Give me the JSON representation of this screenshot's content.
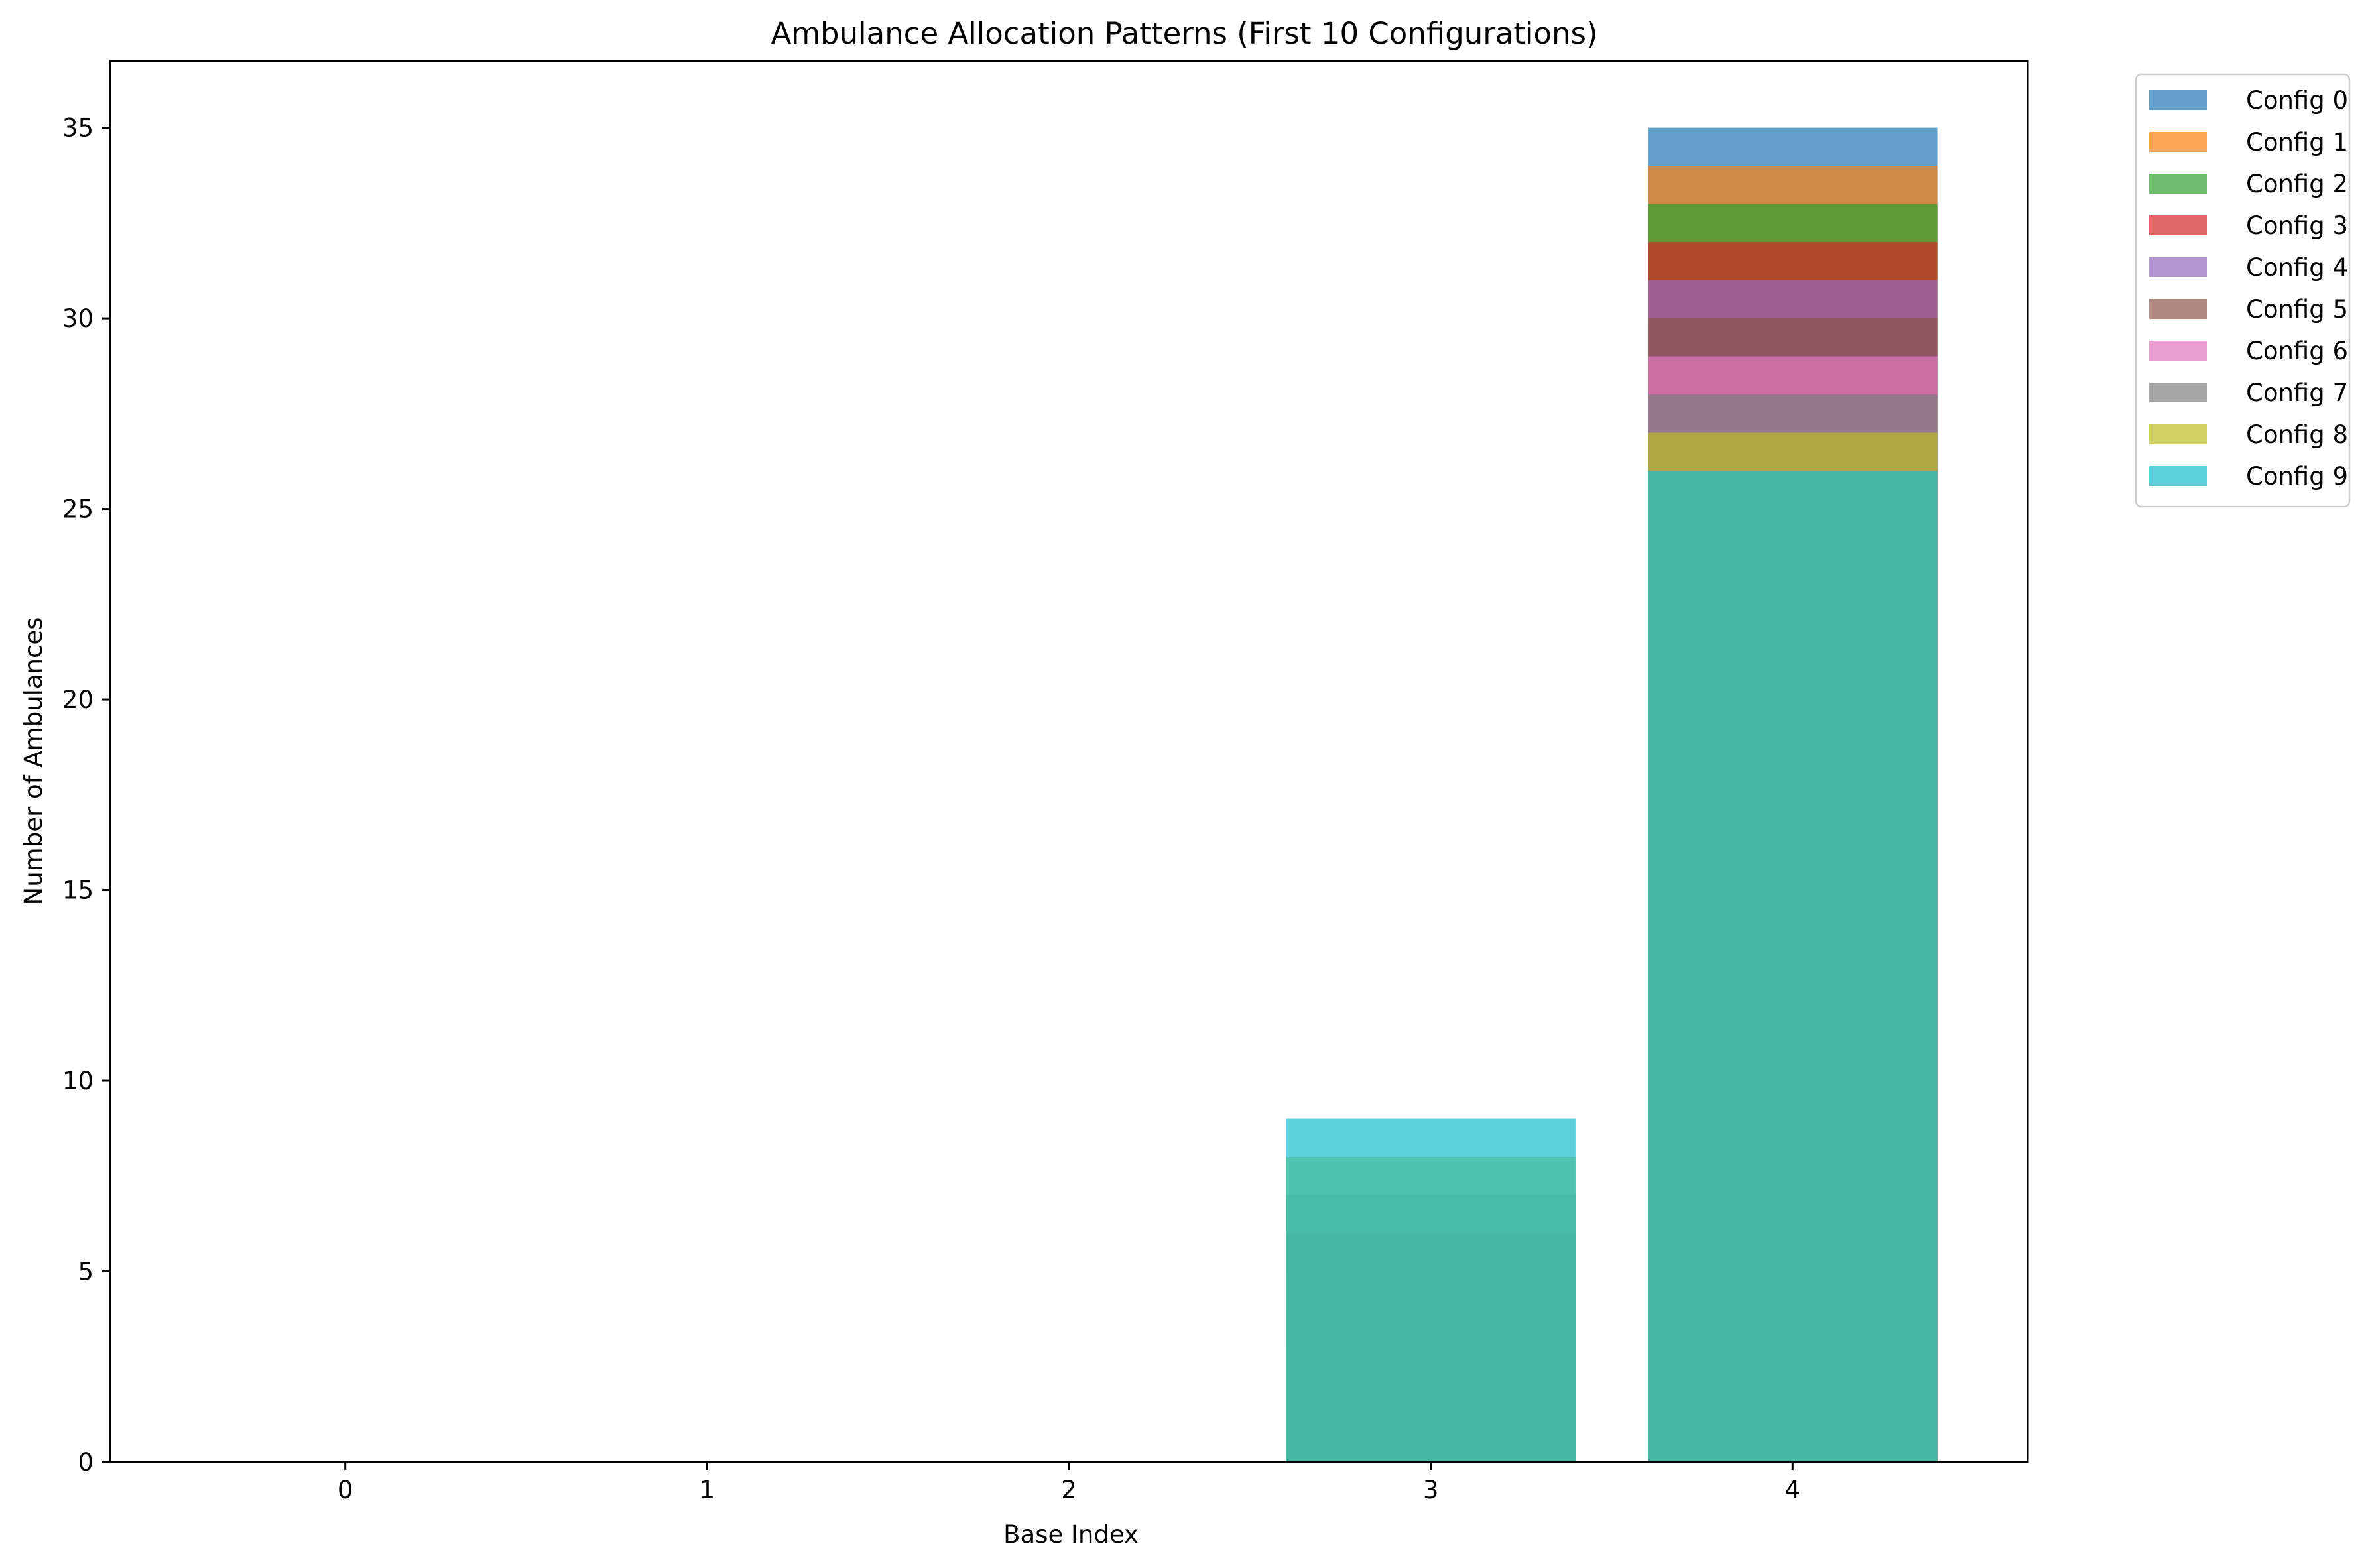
{
  "chart_data": {
    "type": "bar",
    "title": "Ambulance Allocation Patterns (First 10 Configurations)",
    "xlabel": "Base Index",
    "ylabel": "Number of Ambulances",
    "categories": [
      "0",
      "1",
      "2",
      "3",
      "4"
    ],
    "xlim": [
      -0.65,
      4.65
    ],
    "ylim": [
      0,
      36.75
    ],
    "yticks": [
      0,
      5,
      10,
      15,
      20,
      25,
      30,
      35
    ],
    "bar_alpha": 0.7,
    "bar_width": 0.8,
    "legend_position": "outside-upper-right",
    "grid": false,
    "series": [
      {
        "name": "Config 0",
        "color": "#1f77b4",
        "values": [
          0,
          0,
          0,
          0,
          35
        ]
      },
      {
        "name": "Config 1",
        "color": "#ff7f0e",
        "values": [
          0,
          0,
          0,
          1,
          34
        ]
      },
      {
        "name": "Config 2",
        "color": "#2ca02c",
        "values": [
          0,
          0,
          0,
          2,
          33
        ]
      },
      {
        "name": "Config 3",
        "color": "#d62728",
        "values": [
          0,
          0,
          0,
          3,
          32
        ]
      },
      {
        "name": "Config 4",
        "color": "#9467bd",
        "values": [
          0,
          0,
          0,
          4,
          31
        ]
      },
      {
        "name": "Config 5",
        "color": "#8c564b",
        "values": [
          0,
          0,
          0,
          5,
          30
        ]
      },
      {
        "name": "Config 6",
        "color": "#e377c2",
        "values": [
          0,
          0,
          0,
          6,
          29
        ]
      },
      {
        "name": "Config 7",
        "color": "#7f7f7f",
        "values": [
          0,
          0,
          0,
          7,
          28
        ]
      },
      {
        "name": "Config 8",
        "color": "#bcbd22",
        "values": [
          0,
          0,
          0,
          8,
          27
        ]
      },
      {
        "name": "Config 9",
        "color": "#17becf",
        "values": [
          0,
          0,
          0,
          9,
          26
        ]
      }
    ]
  }
}
